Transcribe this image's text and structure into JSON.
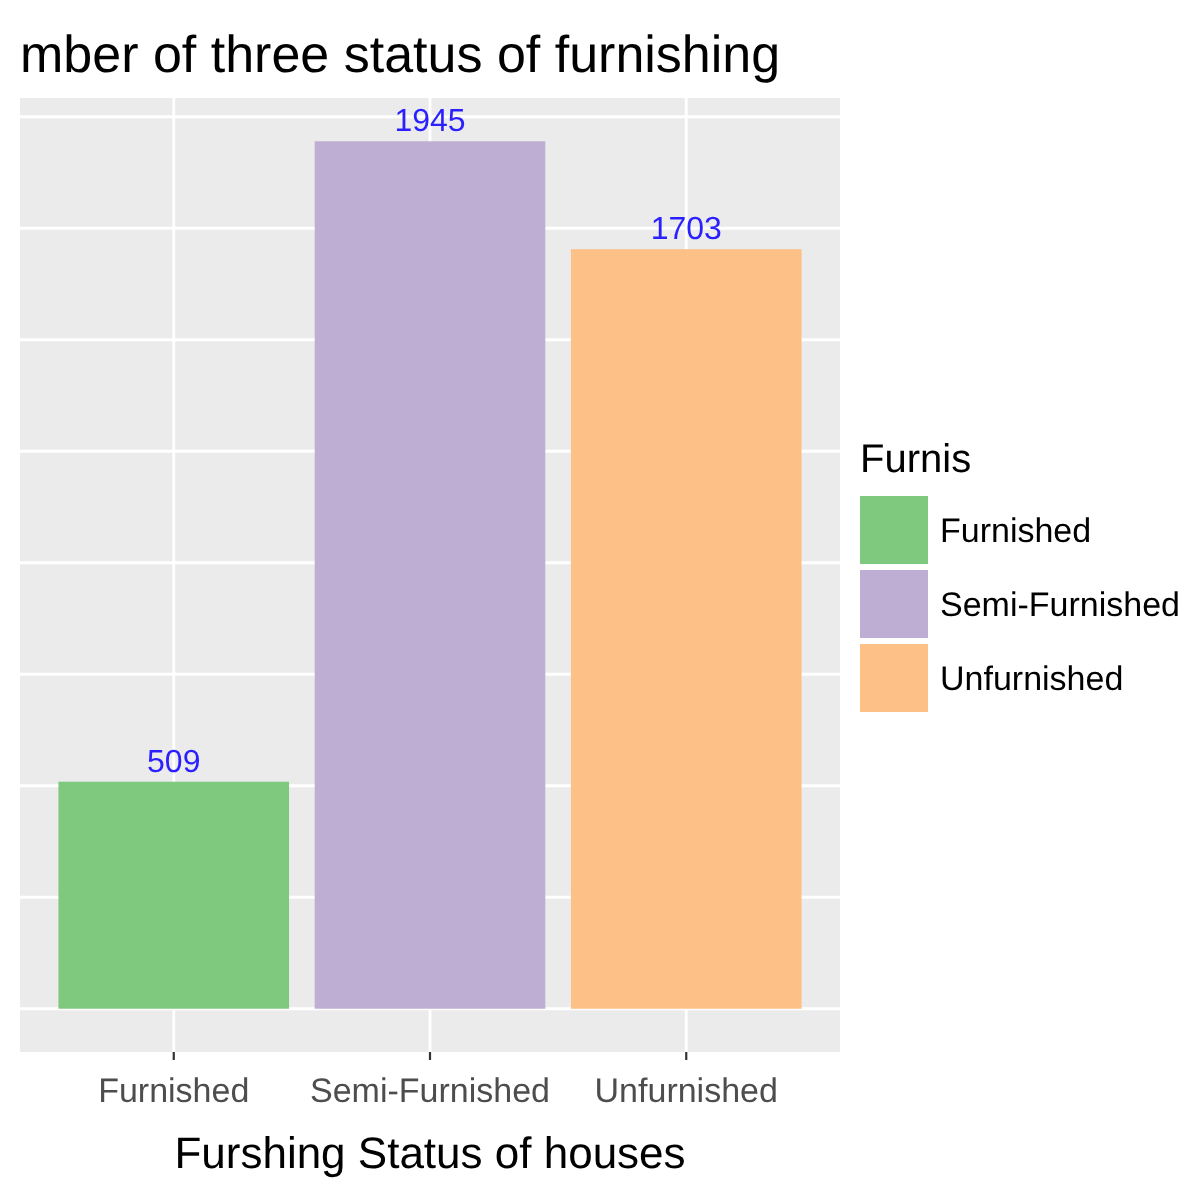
{
  "chart_data": {
    "type": "bar",
    "title": "mber of three status of furnishing",
    "xlabel": "Furshing Status of houses",
    "legend_title": "Furnis",
    "categories": [
      "Furnished",
      "Semi-Furnished",
      "Unfurnished"
    ],
    "series": [
      {
        "name": "Furnished",
        "color": "#7fc97f",
        "values": [
          509,
          null,
          null
        ]
      },
      {
        "name": "Semi-Furnished",
        "color": "#beaed4",
        "values": [
          null,
          1945,
          null
        ]
      },
      {
        "name": "Unfurnished",
        "color": "#fdc086",
        "values": [
          null,
          null,
          1703
        ]
      }
    ],
    "stacked": true,
    "data_labels": true,
    "ylim": [
      -97,
      2042
    ],
    "yticks": [
      {
        "value": 0,
        "label": null
      },
      {
        "value": 250,
        "label": null
      },
      {
        "value": 500,
        "label": null
      },
      {
        "value": 750,
        "label": null
      },
      {
        "value": 1000,
        "label": null
      },
      {
        "value": 1250,
        "label": null
      },
      {
        "value": 1500,
        "label": null
      },
      {
        "value": 1750,
        "label": null
      },
      {
        "value": 2000,
        "label": null
      }
    ],
    "grid": true,
    "legend": "right",
    "tick_labels": "x"
  }
}
